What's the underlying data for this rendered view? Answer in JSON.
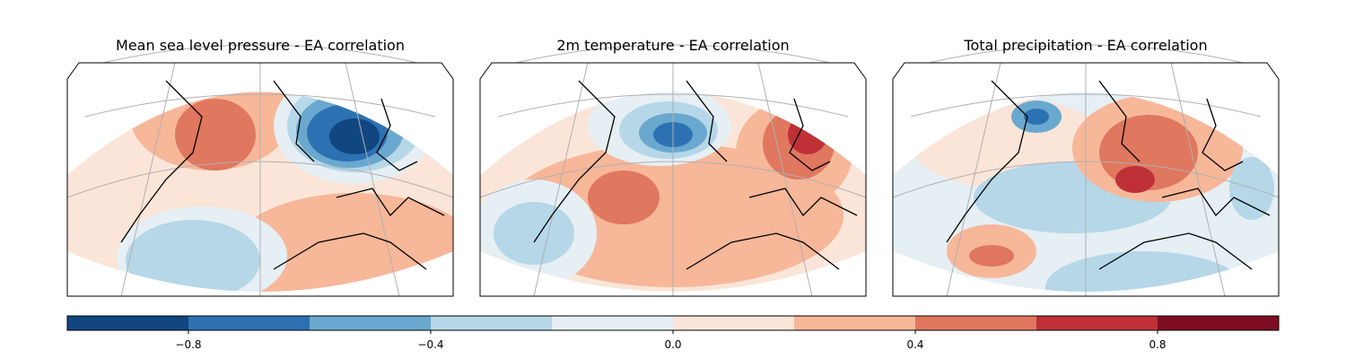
{
  "panels": [
    {
      "title": "Mean sea level pressure - EA correlation"
    },
    {
      "title": "2m temperature - EA correlation"
    },
    {
      "title": "Total precipitation - EA correlation"
    }
  ],
  "colorbar": {
    "levels": [
      -1,
      -0.8,
      -0.6,
      -0.4,
      -0.2,
      0,
      0.2,
      0.4,
      0.6,
      0.8,
      1
    ],
    "colors": [
      "#114781",
      "#2c72b3",
      "#6aa8cf",
      "#b5d7e8",
      "#e6eff4",
      "#fbe5d8",
      "#f7b799",
      "#e0775f",
      "#be3036",
      "#7e0d23"
    ],
    "ticks": [
      {
        "value": -0.8,
        "label": "−0.8"
      },
      {
        "value": -0.4,
        "label": "−0.4"
      },
      {
        "value": 0,
        "label": "0.0"
      },
      0.4,
      0.8
    ]
  }
}
